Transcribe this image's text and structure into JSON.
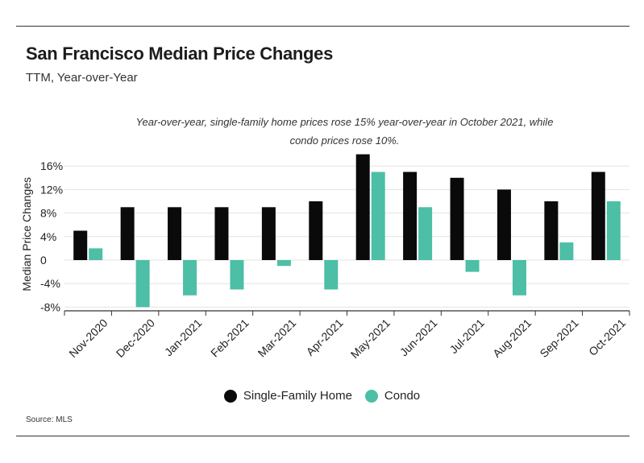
{
  "header": {
    "title": "San Francisco Median Price Changes",
    "subtitle": "TTM, Year-over-Year"
  },
  "annotation": "Year-over-year, single-family home prices rose 15% year-over-year in October 2021, while condo prices rose 10%.",
  "source": "Source:  MLS",
  "colors": {
    "single_family": "#0a0a0a",
    "condo": "#4cbfa6",
    "grid": "#e3e3e3",
    "axis": "#333333"
  },
  "chart_data": {
    "type": "bar",
    "ylabel": "Median Price Changes",
    "xlabel": "",
    "ylim": [
      -10,
      18
    ],
    "yticks": [
      16,
      12,
      8,
      4,
      0,
      -4,
      -8
    ],
    "ytick_labels": [
      "16%",
      "12%",
      "8%",
      "4%",
      "0",
      "-4%",
      "-8%"
    ],
    "categories": [
      "Nov-2020",
      "Dec-2020",
      "Jan-2021",
      "Feb-2021",
      "Mar-2021",
      "Apr-2021",
      "May-2021",
      "Jun-2021",
      "Jul-2021",
      "Aug-2021",
      "Sep-2021",
      "Oct-2021"
    ],
    "series": [
      {
        "name": "Single-Family Home",
        "values": [
          5,
          9,
          9,
          9,
          9,
          10,
          18,
          15,
          14,
          12,
          10,
          15
        ]
      },
      {
        "name": "Condo",
        "values": [
          2,
          -8,
          -6,
          -5,
          -1,
          -5,
          15,
          9,
          -2,
          -6,
          3,
          10
        ]
      }
    ],
    "grid": true,
    "legend_position": "bottom-center"
  }
}
